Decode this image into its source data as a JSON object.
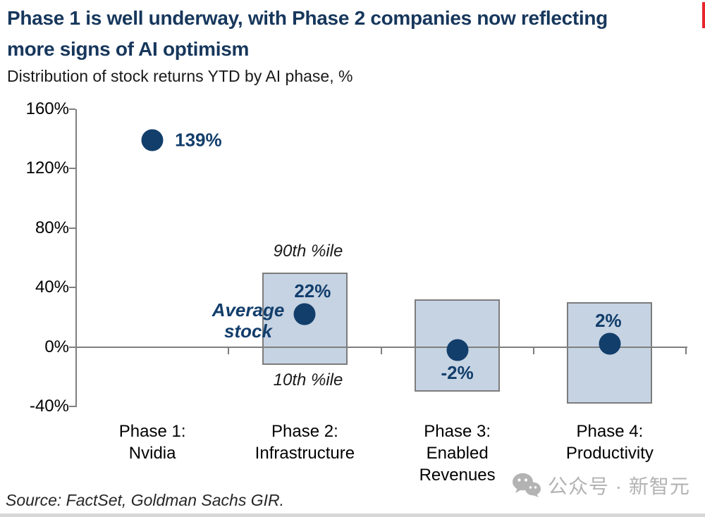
{
  "header": {
    "title": "Phase 1 is well underway, with Phase 2 companies now reflecting\nmore signs of AI optimism",
    "subtitle": "Distribution of stock returns YTD by AI phase, %"
  },
  "chart_data": {
    "type": "scatter",
    "description": "Dot marks the average stock return YTD; shaded box spans the 10th to 90th percentile of returns for each AI phase",
    "title": "Phase 1 is well underway, with Phase 2 companies now reflecting more signs of AI optimism",
    "subtitle": "Distribution of stock returns YTD by AI phase, %",
    "categories": [
      "Phase 1:\nNvidia",
      "Phase 2:\nInfrastructure",
      "Phase 3:\nEnabled\nRevenues",
      "Phase 4:\nProductivity"
    ],
    "ylim": [
      -40,
      160
    ],
    "yticks": [
      160,
      120,
      80,
      40,
      0,
      -40
    ],
    "ytick_labels": [
      "160%",
      "120%",
      "80%",
      "40%",
      "0%",
      "-40%"
    ],
    "grid": false,
    "legend": "none",
    "series": [
      {
        "name": "Average stock",
        "values": [
          139,
          22,
          -2,
          2
        ],
        "labels": [
          "139%",
          "22%",
          "-2%",
          "2%"
        ]
      },
      {
        "name": "90th %ile",
        "values": [
          null,
          50,
          32,
          30
        ]
      },
      {
        "name": "10th %ile",
        "values": [
          null,
          -12,
          -30,
          -38
        ]
      }
    ]
  },
  "annotations": {
    "p90": "90th %ile",
    "p10": "10th %ile",
    "avg": "Average\nstock"
  },
  "footer": {
    "source": "Source: FactSet, Goldman Sachs GIR."
  },
  "watermark": {
    "icon": "wechat-icon",
    "text": "公众号 · 新智元"
  },
  "colors": {
    "title_navy": "#17375c",
    "data_navy": "#123e6b",
    "box_fill": "#c6d3e3",
    "box_border": "#7c7c7c",
    "axis_gray": "#7f7f7f",
    "watermark_gray": "#b3b3b3",
    "accent_red": "#e8252a",
    "bottom_strip": "#d7d7d7"
  }
}
